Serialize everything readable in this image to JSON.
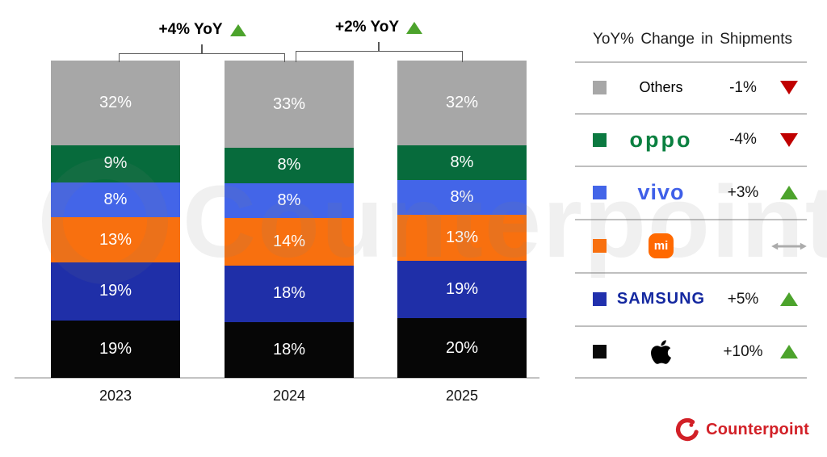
{
  "chart_data": {
    "type": "bar",
    "stacked": true,
    "categories": [
      "2023",
      "2024",
      "2025"
    ],
    "series": [
      {
        "name": "Apple",
        "color": "#060606",
        "values": [
          19,
          18,
          20
        ]
      },
      {
        "name": "Samsung",
        "color": "#1f2fa8",
        "values": [
          19,
          18,
          19
        ]
      },
      {
        "name": "Xiaomi",
        "color": "#f8700f",
        "values": [
          13,
          14,
          13
        ]
      },
      {
        "name": "vivo",
        "color": "#4365e8",
        "values": [
          8,
          8,
          8
        ]
      },
      {
        "name": "OPPO",
        "color": "#076b3c",
        "values": [
          9,
          8,
          8
        ]
      },
      {
        "name": "Others",
        "color": "#a7a7a7",
        "values": [
          32,
          33,
          32
        ]
      }
    ],
    "value_suffix": "%",
    "ylim": [
      0,
      100
    ],
    "legend_position": "right",
    "annotations": [
      {
        "between": [
          "2023",
          "2024"
        ],
        "label": "+4% YoY",
        "direction": "up"
      },
      {
        "between": [
          "2024",
          "2025"
        ],
        "label": "+2% YoY",
        "direction": "up"
      }
    ]
  },
  "legend": {
    "title": "YoY% Change in Shipments",
    "rows": [
      {
        "brand": "Others",
        "brand_label": "Others",
        "color": "#a7a7a7",
        "change": "-1%",
        "direction": "down"
      },
      {
        "brand": "OPPO",
        "logo_text": "oppo",
        "color": "#0c7a41",
        "change": "-4%",
        "direction": "down"
      },
      {
        "brand": "vivo",
        "logo_text": "vivo",
        "color": "#4365e8",
        "change": "+3%",
        "direction": "up"
      },
      {
        "brand": "Xiaomi",
        "logo_text": "mi",
        "color": "#f8700f",
        "change": "",
        "direction": "flat"
      },
      {
        "brand": "Samsung",
        "logo_text": "SAMSUNG",
        "color": "#2130ad",
        "change": "+5%",
        "direction": "up"
      },
      {
        "brand": "Apple",
        "color": "#0a0a0a",
        "change": "+10%",
        "direction": "up"
      }
    ]
  },
  "watermark": {
    "text": "Counterpoint"
  },
  "branding": {
    "logo_text": "Counterpoint"
  },
  "colors": {
    "up_triangle": "#4CA32C",
    "down_triangle": "#C00000",
    "flat_arrow": "#ababab",
    "brand_red": "#d22027",
    "axis_line": "#c3c3c3",
    "bracket_line": "#595959"
  }
}
